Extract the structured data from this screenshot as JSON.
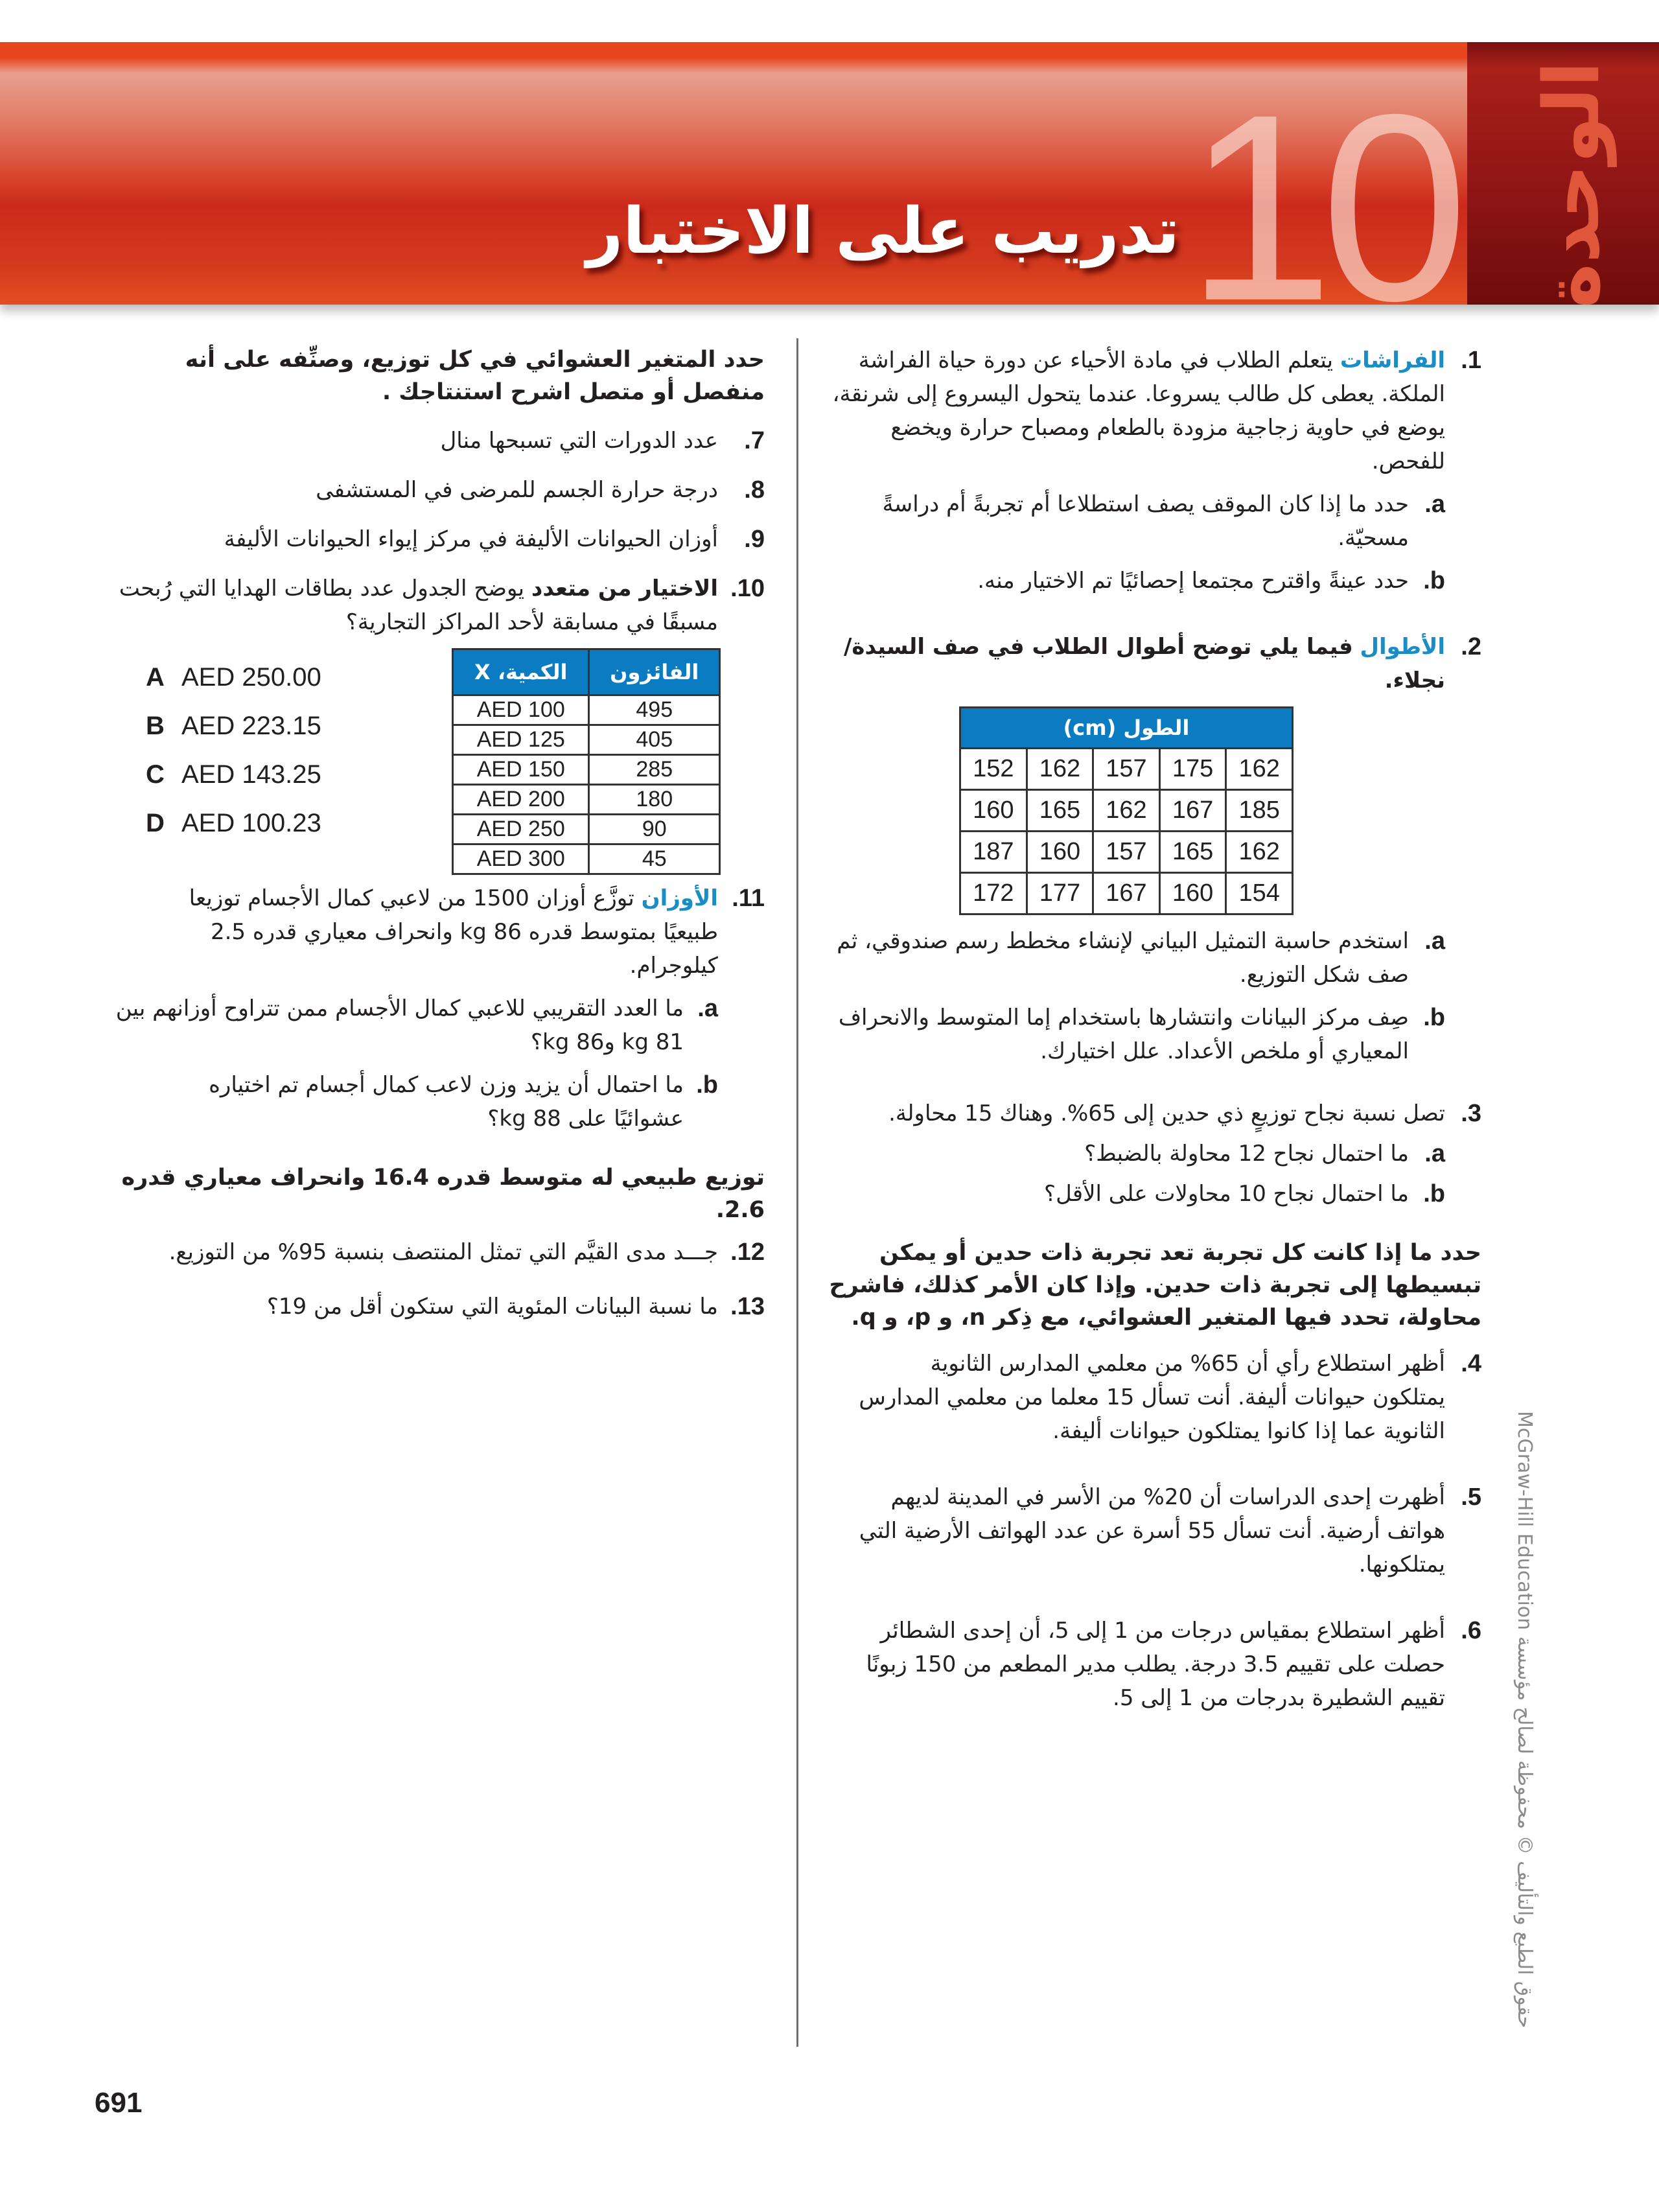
{
  "header": {
    "unit_word": "الوحدة",
    "unit_number": "10",
    "title": "تدريب على الاختبار",
    "colors": {
      "banner": "#d8432c",
      "dark_strip": "#8d1414",
      "accent_blue": "#1b8dc6",
      "table_header": "#0b7cc1"
    }
  },
  "right_column": {
    "q1": {
      "number": "1.",
      "lead": "الفراشات",
      "text": "يتعلم الطلاب في مادة الأحياء عن دورة حياة الفراشة الملكة. يعطى كل طالب يسروعا. عندما يتحول اليسروع إلى شرنقة، يوضع في حاوية زجاجية مزودة بالطعام ومصباح حرارة ويخضع للفحص.",
      "a": {
        "label": "a.",
        "text": "حدد ما إذا كان الموقف يصف استطلاعا أم تجربةً أم دراسةً مسحيّة."
      },
      "b": {
        "label": "b.",
        "text": "حدد عينةً واقترح مجتمعا إحصائيًا تم الاختيار منه."
      }
    },
    "q2": {
      "number": "2.",
      "lead": "الأطوال",
      "text": "فيما يلي توضح أطوال الطلاب في صف السيدة/ نجلاء.",
      "table": {
        "header": "الطول (cm)",
        "rows": [
          [
            "152",
            "162",
            "157",
            "175",
            "162"
          ],
          [
            "160",
            "165",
            "162",
            "167",
            "185"
          ],
          [
            "187",
            "160",
            "157",
            "165",
            "162"
          ],
          [
            "172",
            "177",
            "167",
            "160",
            "154"
          ]
        ]
      },
      "a": {
        "label": "a.",
        "text": "استخدم حاسبة التمثيل البياني لإنشاء مخطط رسم صندوقي، ثم صف شكل التوزيع."
      },
      "b": {
        "label": "b.",
        "text": "صِف مركز البيانات وانتشارها باستخدام إما المتوسط والانحراف المعياري أو ملخص الأعداد. علل اختيارك."
      }
    },
    "q3": {
      "number": "3.",
      "text": "تصل نسبة نجاح توزيعٍ ذي حدين إلى 65%. وهناك 15 محاولة.",
      "a": {
        "label": "a.",
        "text": "ما احتمال نجاح 12 محاولة بالضبط؟"
      },
      "b": {
        "label": "b.",
        "text": "ما احتمال نجاح 10 محاولات على الأقل؟"
      }
    },
    "instruction": "حدد ما إذا كانت كل تجربة تعد تجربة ذات حدين أو يمكن تبسيطها إلى تجربة ذات حدين. وإذا كان الأمر كذلك، فاشرح محاولة، تحدد فيها المتغير العشوائي، مع ذِكر n، و p، و q.",
    "q4": {
      "number": "4.",
      "text": "أظهر استطلاع رأي أن 65% من معلمي المدارس الثانوية يمتلكون حيوانات أليفة. أنت تسأل 15 معلما من معلمي المدارس الثانوية عما إذا كانوا يمتلكون حيوانات أليفة."
    },
    "q5": {
      "number": "5.",
      "text": "أظهرت إحدى الدراسات أن 20% من الأسر في المدينة لديهم هواتف أرضية. أنت تسأل 55 أسرة عن عدد الهواتف الأرضية التي يمتلكونها."
    },
    "q6": {
      "number": "6.",
      "text": "أظهر استطلاع بمقياس درجات من 1 إلى 5، أن إحدى الشطائر حصلت على تقييم 3.5 درجة. يطلب مدير المطعم من 150 زبونًا تقييم الشطيرة بدرجات من 1 إلى 5."
    }
  },
  "left_column": {
    "instruction": "حدد المتغير العشوائي في كل توزيع، وصنِّفه على أنه منفصل أو متصل اشرح استنتاجك .",
    "q7": {
      "number": "7.",
      "text": "عدد الدورات التي تسبحها منال"
    },
    "q8": {
      "number": "8.",
      "text": "درجة حرارة الجسم للمرضى في المستشفى"
    },
    "q9": {
      "number": "9.",
      "text": "أوزان الحيوانات الأليفة في مركز إيواء الحيوانات الأليفة"
    },
    "q10": {
      "number": "10.",
      "lead": "الاختيار من متعدد",
      "text": "يوضح الجدول عدد بطاقات الهدايا التي رُبحت مسبقًا في مسابقة لأحد المراكز التجارية؟",
      "options": [
        {
          "letter": "A",
          "value": "AED 250.00"
        },
        {
          "letter": "B",
          "value": "AED 223.15"
        },
        {
          "letter": "C",
          "value": "AED 143.25"
        },
        {
          "letter": "D",
          "value": "AED 100.23"
        }
      ],
      "table": {
        "headers": [
          "الكمية، X",
          "الفائزون"
        ],
        "rows": [
          [
            "AED 100",
            "495"
          ],
          [
            "AED 125",
            "405"
          ],
          [
            "AED 150",
            "285"
          ],
          [
            "AED 200",
            "180"
          ],
          [
            "AED 250",
            "90"
          ],
          [
            "AED 300",
            "45"
          ]
        ]
      }
    },
    "q11": {
      "number": "11.",
      "lead": "الأوزان",
      "text": "توزَّع أوزان 1500 من لاعبي كمال الأجسام توزيعا طبيعيًا بمتوسط قدره 86 kg وانحراف معياري قدره 2.5 كيلوجرام.",
      "a": {
        "label": "a.",
        "text": "ما العدد التقريبي للاعبي كمال الأجسام ممن تتراوح أوزانهم بين 81 kg و86 kg؟"
      },
      "b": {
        "label": "b.",
        "text": "ما احتمال أن يزيد وزن لاعب كمال أجسام تم اختياره عشوائيًا على 88 kg؟"
      }
    },
    "section_heading": "توزيع طبيعي له متوسط قدره 16.4 وانحراف معياري قدره 2.6.",
    "q12": {
      "number": "12.",
      "text": "جـــد مدى القيَّم التي تمثل المنتصف بنسبة 95% من التوزيع."
    },
    "q13": {
      "number": "13.",
      "text": "ما نسبة البيانات المئوية التي ستكون أقل من 19؟"
    }
  },
  "footer": {
    "page_number": "691",
    "copyright": "حقوق الطبع والتأليف © محفوظة لصالح مؤسسة McGraw-Hill Education"
  }
}
